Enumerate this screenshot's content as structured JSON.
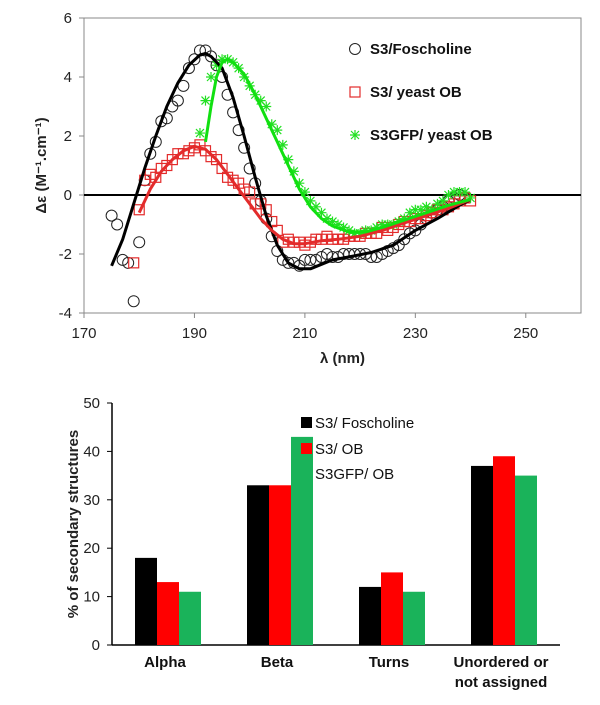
{
  "chart_data": [
    {
      "type": "scatter",
      "ylabel": "Δε (M⁻¹.cm⁻¹)",
      "xlabel": "λ (nm)",
      "xlim": [
        170,
        260
      ],
      "ylim": [
        -4,
        6
      ],
      "xticks": [
        "170",
        "190",
        "210",
        "230",
        "250"
      ],
      "yticks": [
        "-4",
        "-2",
        "0",
        "2",
        "4",
        "6"
      ],
      "legend_position": "top-right",
      "series": [
        {
          "name": "S3/Foscholine",
          "color": "#000000",
          "marker": "circle",
          "points": [
            [
              175,
              -0.7
            ],
            [
              176,
              -1.0
            ],
            [
              177,
              -2.2
            ],
            [
              178,
              -2.3
            ],
            [
              179,
              -3.6
            ],
            [
              180,
              -1.6
            ],
            [
              181,
              0.5
            ],
            [
              182,
              1.4
            ],
            [
              183,
              1.8
            ],
            [
              184,
              2.5
            ],
            [
              185,
              2.6
            ],
            [
              186,
              3.0
            ],
            [
              187,
              3.2
            ],
            [
              188,
              3.7
            ],
            [
              189,
              4.3
            ],
            [
              190,
              4.6
            ],
            [
              191,
              4.9
            ],
            [
              192,
              4.9
            ],
            [
              193,
              4.7
            ],
            [
              194,
              4.4
            ],
            [
              195,
              4.0
            ],
            [
              196,
              3.4
            ],
            [
              197,
              2.8
            ],
            [
              198,
              2.2
            ],
            [
              199,
              1.6
            ],
            [
              200,
              0.9
            ],
            [
              201,
              0.4
            ],
            [
              202,
              -0.2
            ],
            [
              203,
              -0.8
            ],
            [
              204,
              -1.4
            ],
            [
              205,
              -1.9
            ],
            [
              206,
              -2.2
            ],
            [
              207,
              -2.3
            ],
            [
              208,
              -2.3
            ],
            [
              209,
              -2.4
            ],
            [
              210,
              -2.2
            ],
            [
              211,
              -2.2
            ],
            [
              212,
              -2.2
            ],
            [
              213,
              -2.1
            ],
            [
              214,
              -2.0
            ],
            [
              215,
              -2.1
            ],
            [
              216,
              -2.1
            ],
            [
              217,
              -2.0
            ],
            [
              218,
              -2.0
            ],
            [
              219,
              -2.0
            ],
            [
              220,
              -2.0
            ],
            [
              221,
              -2.0
            ],
            [
              222,
              -2.1
            ],
            [
              223,
              -2.1
            ],
            [
              224,
              -2.0
            ],
            [
              225,
              -1.9
            ],
            [
              226,
              -1.8
            ],
            [
              227,
              -1.7
            ],
            [
              228,
              -1.5
            ],
            [
              229,
              -1.3
            ],
            [
              230,
              -1.2
            ],
            [
              231,
              -1.0
            ],
            [
              232,
              -0.8
            ],
            [
              233,
              -0.6
            ],
            [
              234,
              -0.5
            ],
            [
              235,
              -0.4
            ],
            [
              236,
              -0.2
            ],
            [
              237,
              -0.1
            ],
            [
              238,
              0.0
            ],
            [
              239,
              -0.1
            ]
          ],
          "fit": [
            [
              175,
              -2.4
            ],
            [
              177,
              -1.5
            ],
            [
              179,
              -0.3
            ],
            [
              181,
              0.9
            ],
            [
              183,
              2.0
            ],
            [
              185,
              3.0
            ],
            [
              187,
              3.8
            ],
            [
              189,
              4.4
            ],
            [
              191,
              4.75
            ],
            [
              192,
              4.8
            ],
            [
              193,
              4.7
            ],
            [
              195,
              4.3
            ],
            [
              197,
              3.3
            ],
            [
              199,
              2.0
            ],
            [
              201,
              0.6
            ],
            [
              203,
              -0.7
            ],
            [
              205,
              -1.7
            ],
            [
              207,
              -2.3
            ],
            [
              209,
              -2.5
            ],
            [
              211,
              -2.5
            ],
            [
              213,
              -2.35
            ],
            [
              215,
              -2.2
            ],
            [
              218,
              -2.1
            ],
            [
              222,
              -1.95
            ],
            [
              226,
              -1.7
            ],
            [
              230,
              -1.2
            ],
            [
              234,
              -0.8
            ],
            [
              238,
              -0.35
            ],
            [
              240,
              -0.15
            ]
          ]
        },
        {
          "name": "S3/ yeast OB",
          "color": "#e32b2b",
          "marker": "square",
          "points": [
            [
              179,
              -2.3
            ],
            [
              180,
              -0.5
            ],
            [
              181,
              0.5
            ],
            [
              182,
              0.7
            ],
            [
              183,
              0.6
            ],
            [
              184,
              0.9
            ],
            [
              185,
              1.0
            ],
            [
              186,
              1.2
            ],
            [
              187,
              1.4
            ],
            [
              188,
              1.4
            ],
            [
              189,
              1.5
            ],
            [
              190,
              1.6
            ],
            [
              191,
              1.7
            ],
            [
              192,
              1.5
            ],
            [
              193,
              1.3
            ],
            [
              194,
              1.2
            ],
            [
              195,
              0.9
            ],
            [
              196,
              0.6
            ],
            [
              197,
              0.5
            ],
            [
              198,
              0.4
            ],
            [
              199,
              0.2
            ],
            [
              200,
              0.1
            ],
            [
              201,
              -0.3
            ],
            [
              202,
              -0.3
            ],
            [
              203,
              -0.5
            ],
            [
              204,
              -0.9
            ],
            [
              205,
              -1.2
            ],
            [
              206,
              -1.6
            ],
            [
              207,
              -1.5
            ],
            [
              208,
              -1.6
            ],
            [
              209,
              -1.6
            ],
            [
              210,
              -1.7
            ],
            [
              211,
              -1.6
            ],
            [
              212,
              -1.5
            ],
            [
              213,
              -1.5
            ],
            [
              214,
              -1.4
            ],
            [
              215,
              -1.5
            ],
            [
              216,
              -1.5
            ],
            [
              217,
              -1.5
            ],
            [
              218,
              -1.4
            ],
            [
              219,
              -1.4
            ],
            [
              220,
              -1.4
            ],
            [
              221,
              -1.3
            ],
            [
              222,
              -1.3
            ],
            [
              223,
              -1.3
            ],
            [
              224,
              -1.1
            ],
            [
              225,
              -1.2
            ],
            [
              226,
              -1.1
            ],
            [
              227,
              -1.0
            ],
            [
              228,
              -0.9
            ],
            [
              229,
              -0.9
            ],
            [
              230,
              -0.8
            ],
            [
              231,
              -0.8
            ],
            [
              232,
              -0.7
            ],
            [
              233,
              -0.6
            ],
            [
              234,
              -0.5
            ],
            [
              235,
              -0.5
            ],
            [
              236,
              -0.4
            ],
            [
              237,
              -0.3
            ],
            [
              238,
              -0.2
            ],
            [
              239,
              -0.1
            ],
            [
              240,
              -0.2
            ]
          ],
          "fit": [
            [
              180,
              -0.6
            ],
            [
              182,
              0.2
            ],
            [
              184,
              0.8
            ],
            [
              186,
              1.2
            ],
            [
              188,
              1.5
            ],
            [
              190,
              1.65
            ],
            [
              192,
              1.55
            ],
            [
              194,
              1.2
            ],
            [
              196,
              0.7
            ],
            [
              198,
              0.2
            ],
            [
              200,
              -0.3
            ],
            [
              202,
              -0.8
            ],
            [
              204,
              -1.2
            ],
            [
              206,
              -1.5
            ],
            [
              208,
              -1.65
            ],
            [
              210,
              -1.65
            ],
            [
              213,
              -1.55
            ],
            [
              216,
              -1.5
            ],
            [
              220,
              -1.4
            ],
            [
              224,
              -1.2
            ],
            [
              228,
              -0.95
            ],
            [
              232,
              -0.7
            ],
            [
              236,
              -0.45
            ],
            [
              240,
              -0.15
            ]
          ]
        },
        {
          "name": "S3GFP/ yeast OB",
          "color": "#22e022",
          "marker": "asterisk",
          "points": [
            [
              191,
              2.1
            ],
            [
              192,
              3.2
            ],
            [
              193,
              4.0
            ],
            [
              194,
              4.4
            ],
            [
              195,
              4.6
            ],
            [
              196,
              4.6
            ],
            [
              197,
              4.5
            ],
            [
              198,
              4.3
            ],
            [
              199,
              4.0
            ],
            [
              200,
              3.7
            ],
            [
              201,
              3.4
            ],
            [
              202,
              3.2
            ],
            [
              203,
              3.0
            ],
            [
              204,
              2.4
            ],
            [
              205,
              2.2
            ],
            [
              206,
              1.7
            ],
            [
              207,
              1.2
            ],
            [
              208,
              0.8
            ],
            [
              209,
              0.4
            ],
            [
              210,
              0.1
            ],
            [
              211,
              -0.2
            ],
            [
              212,
              -0.4
            ],
            [
              213,
              -0.6
            ],
            [
              214,
              -0.8
            ],
            [
              215,
              -0.9
            ],
            [
              216,
              -1.0
            ],
            [
              217,
              -1.1
            ],
            [
              218,
              -1.2
            ],
            [
              219,
              -1.3
            ],
            [
              220,
              -1.3
            ],
            [
              221,
              -1.2
            ],
            [
              222,
              -1.2
            ],
            [
              223,
              -1.1
            ],
            [
              224,
              -1.0
            ],
            [
              225,
              -1.0
            ],
            [
              226,
              -1.0
            ],
            [
              227,
              -0.9
            ],
            [
              228,
              -0.8
            ],
            [
              229,
              -0.6
            ],
            [
              230,
              -0.5
            ],
            [
              231,
              -0.5
            ],
            [
              232,
              -0.4
            ],
            [
              233,
              -0.5
            ],
            [
              234,
              -0.3
            ],
            [
              235,
              -0.2
            ],
            [
              236,
              0.0
            ],
            [
              237,
              0.1
            ],
            [
              238,
              0.1
            ],
            [
              239,
              0.1
            ],
            [
              240,
              -0.1
            ]
          ],
          "fit": [
            [
              192,
              1.8
            ],
            [
              193,
              3.0
            ],
            [
              194,
              4.0
            ],
            [
              195,
              4.5
            ],
            [
              196,
              4.6
            ],
            [
              197,
              4.5
            ],
            [
              199,
              4.1
            ],
            [
              201,
              3.4
            ],
            [
              203,
              2.6
            ],
            [
              205,
              1.8
            ],
            [
              207,
              1.0
            ],
            [
              209,
              0.2
            ],
            [
              211,
              -0.4
            ],
            [
              213,
              -0.8
            ],
            [
              215,
              -1.05
            ],
            [
              218,
              -1.25
            ],
            [
              221,
              -1.25
            ],
            [
              224,
              -1.1
            ],
            [
              228,
              -0.85
            ],
            [
              232,
              -0.6
            ],
            [
              236,
              -0.35
            ],
            [
              240,
              -0.15
            ]
          ]
        }
      ]
    },
    {
      "type": "bar",
      "ylabel": "% of secondary structures",
      "ylim": [
        0,
        50
      ],
      "yticks": [
        "0",
        "10",
        "20",
        "30",
        "40",
        "50"
      ],
      "categories": [
        "Alpha",
        "Beta",
        "Turns",
        "Unordered or not assigned"
      ],
      "category_labels": [
        [
          "Alpha"
        ],
        [
          "Beta"
        ],
        [
          "Turns"
        ],
        [
          "Unordered or",
          "not assigned"
        ]
      ],
      "legend_position": "top-right",
      "series": [
        {
          "name": "S3/ Foscholine",
          "color": "#000000",
          "values": [
            18,
            33,
            12,
            37
          ]
        },
        {
          "name": "S3/ OB",
          "color": "#ff0000",
          "values": [
            13,
            33,
            15,
            39
          ]
        },
        {
          "name": "S3GFP/ OB",
          "color": "#1ab35a",
          "values": [
            11,
            43,
            11,
            35
          ]
        }
      ]
    }
  ]
}
